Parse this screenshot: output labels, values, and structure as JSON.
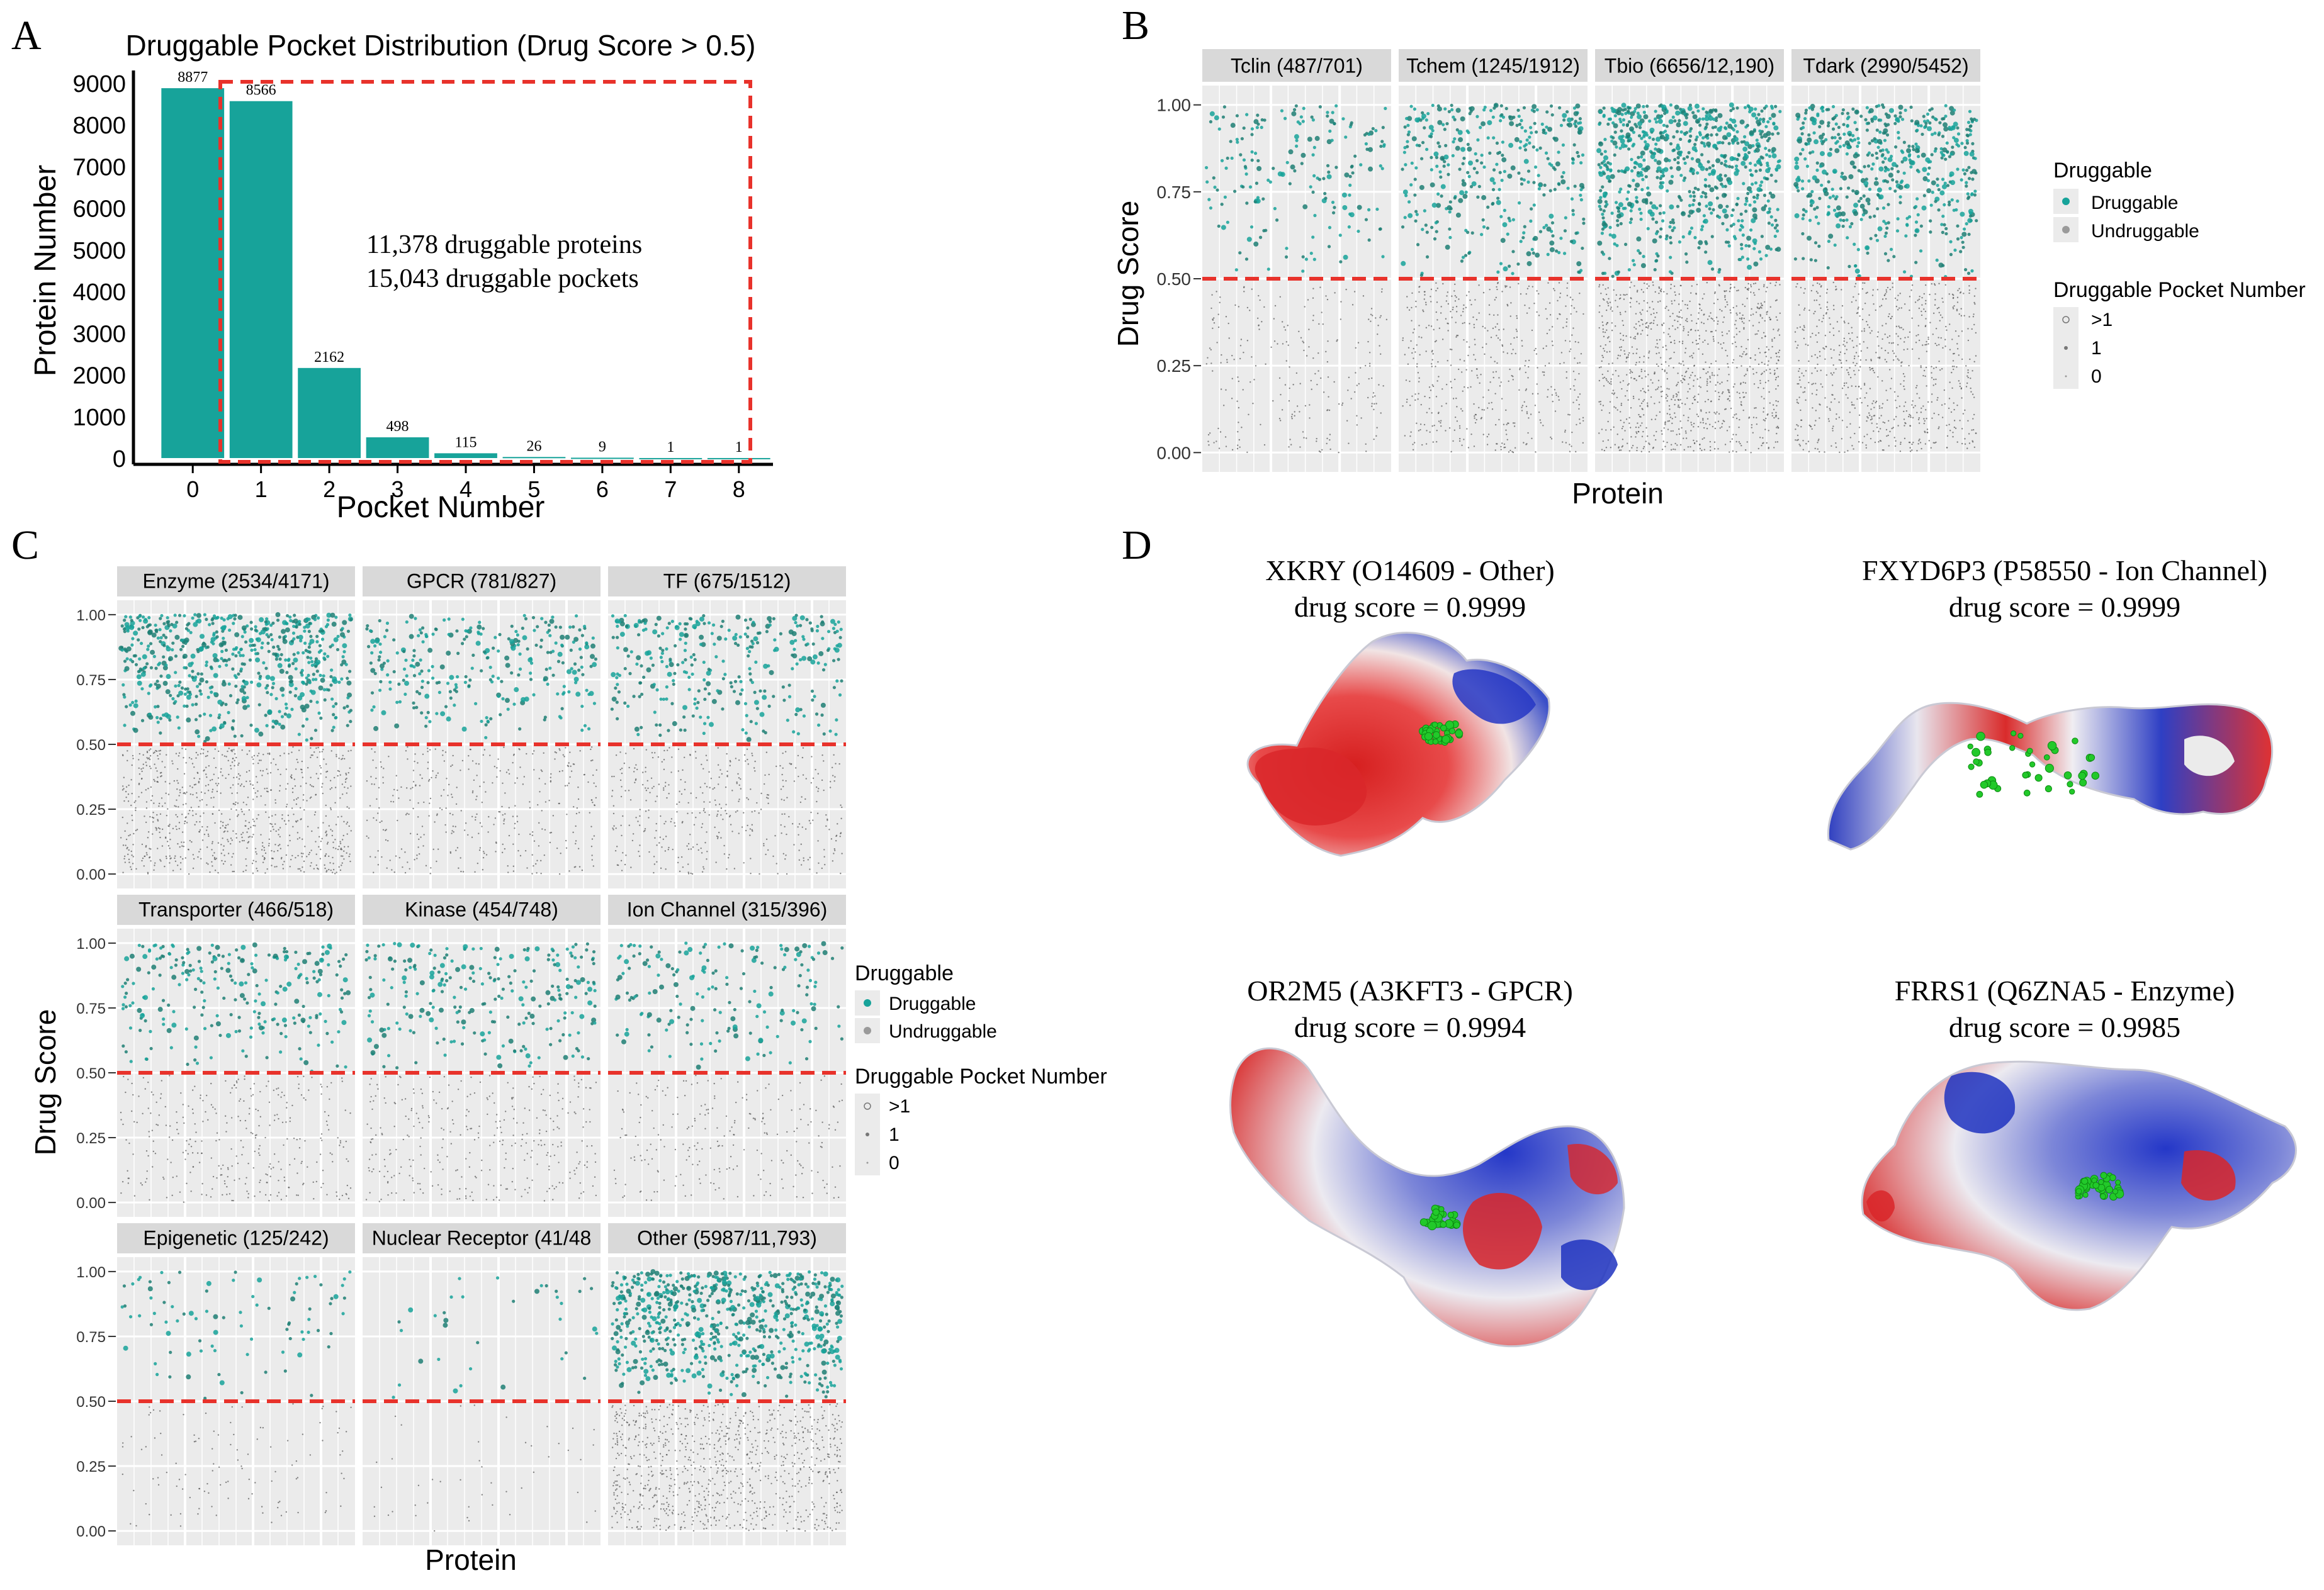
{
  "chart_data": [
    {
      "panel": "A",
      "type": "bar",
      "title": "Druggable Pocket Distribution (Drug Score > 0.5)",
      "xlabel": "Pocket Number",
      "ylabel": "Protein Number",
      "categories": [
        "0",
        "1",
        "2",
        "3",
        "4",
        "5",
        "6",
        "7",
        "8"
      ],
      "values": [
        8877,
        8566,
        2162,
        498,
        115,
        26,
        9,
        1,
        1
      ],
      "ylim": [
        0,
        9000
      ],
      "yticks": [
        "0",
        "1000",
        "2000",
        "3000",
        "4000",
        "5000",
        "6000",
        "7000",
        "8000",
        "9000"
      ],
      "bar_color": "#17a39a",
      "highlight_box_color": "#e8322b",
      "annotation_lines": [
        "11,378 druggable proteins",
        "15,043 druggable pockets"
      ]
    },
    {
      "panel": "B",
      "type": "scatter",
      "xlabel": "Protein",
      "ylabel": "Drug Score",
      "ylim": [
        0,
        1
      ],
      "yticks": [
        "0.00",
        "0.25",
        "0.50",
        "0.75",
        "1.00"
      ],
      "threshold": 0.5,
      "facets": [
        {
          "label": "Tclin (487/701)",
          "density": 0.25
        },
        {
          "label": "Tchem (1245/1912)",
          "density": 0.5
        },
        {
          "label": "Tbio (6656/12,190)",
          "density": 1.0
        },
        {
          "label": "Tdark (2990/5452)",
          "density": 0.75
        }
      ],
      "legend": {
        "druggable_title": "Druggable",
        "druggable_items": [
          "Druggable",
          "Undruggable"
        ],
        "pocket_title": "Druggable Pocket Number",
        "pocket_items": [
          ">1",
          "1",
          "0"
        ]
      }
    },
    {
      "panel": "C",
      "type": "scatter",
      "xlabel": "Protein",
      "ylabel": "Drug Score",
      "ylim": [
        0,
        1
      ],
      "yticks": [
        "0.00",
        "0.25",
        "0.50",
        "0.75",
        "1.00"
      ],
      "threshold": 0.5,
      "facets": [
        {
          "label": "Enzyme (2534/4171)",
          "density": 0.9
        },
        {
          "label": "GPCR (781/827)",
          "density": 0.4
        },
        {
          "label": "TF (675/1512)",
          "density": 0.45
        },
        {
          "label": "Transporter (466/518)",
          "density": 0.35
        },
        {
          "label": "Kinase (454/748)",
          "density": 0.35
        },
        {
          "label": "Ion Channel (315/396)",
          "density": 0.25
        },
        {
          "label": "Epigenetic (125/242)",
          "density": 0.12
        },
        {
          "label": "Nuclear Receptor (41/48",
          "density": 0.05
        },
        {
          "label": "Other (5987/11,793)",
          "density": 1.0
        }
      ],
      "legend": {
        "druggable_title": "Druggable",
        "druggable_items": [
          "Druggable",
          "Undruggable"
        ],
        "pocket_title": "Druggable Pocket Number",
        "pocket_items": [
          ">1",
          "1",
          "0"
        ]
      }
    }
  ],
  "panel_letters": [
    "A",
    "B",
    "C",
    "D"
  ],
  "panel_d": {
    "structures": [
      {
        "name": "XKRY (O14609 - Other)",
        "score": "drug score = 0.9999"
      },
      {
        "name": "FXYD6P3 (P58550 - Ion Channel)",
        "score": "drug score = 0.9999"
      },
      {
        "name": "OR2M5 (A3KFT3 - GPCR)",
        "score": "drug score = 0.9994"
      },
      {
        "name": "FRRS1 (Q6ZNA5 - Enzyme)",
        "score": "drug score = 0.9985"
      }
    ]
  },
  "colors": {
    "teal": "#17a39a",
    "dark_teal": "#1f7f74",
    "threshold": "#e8322b",
    "panel_bg": "#ebebeb",
    "strip_bg": "#d9d9d9",
    "grid": "#ffffff",
    "undruggable": "#555555"
  }
}
